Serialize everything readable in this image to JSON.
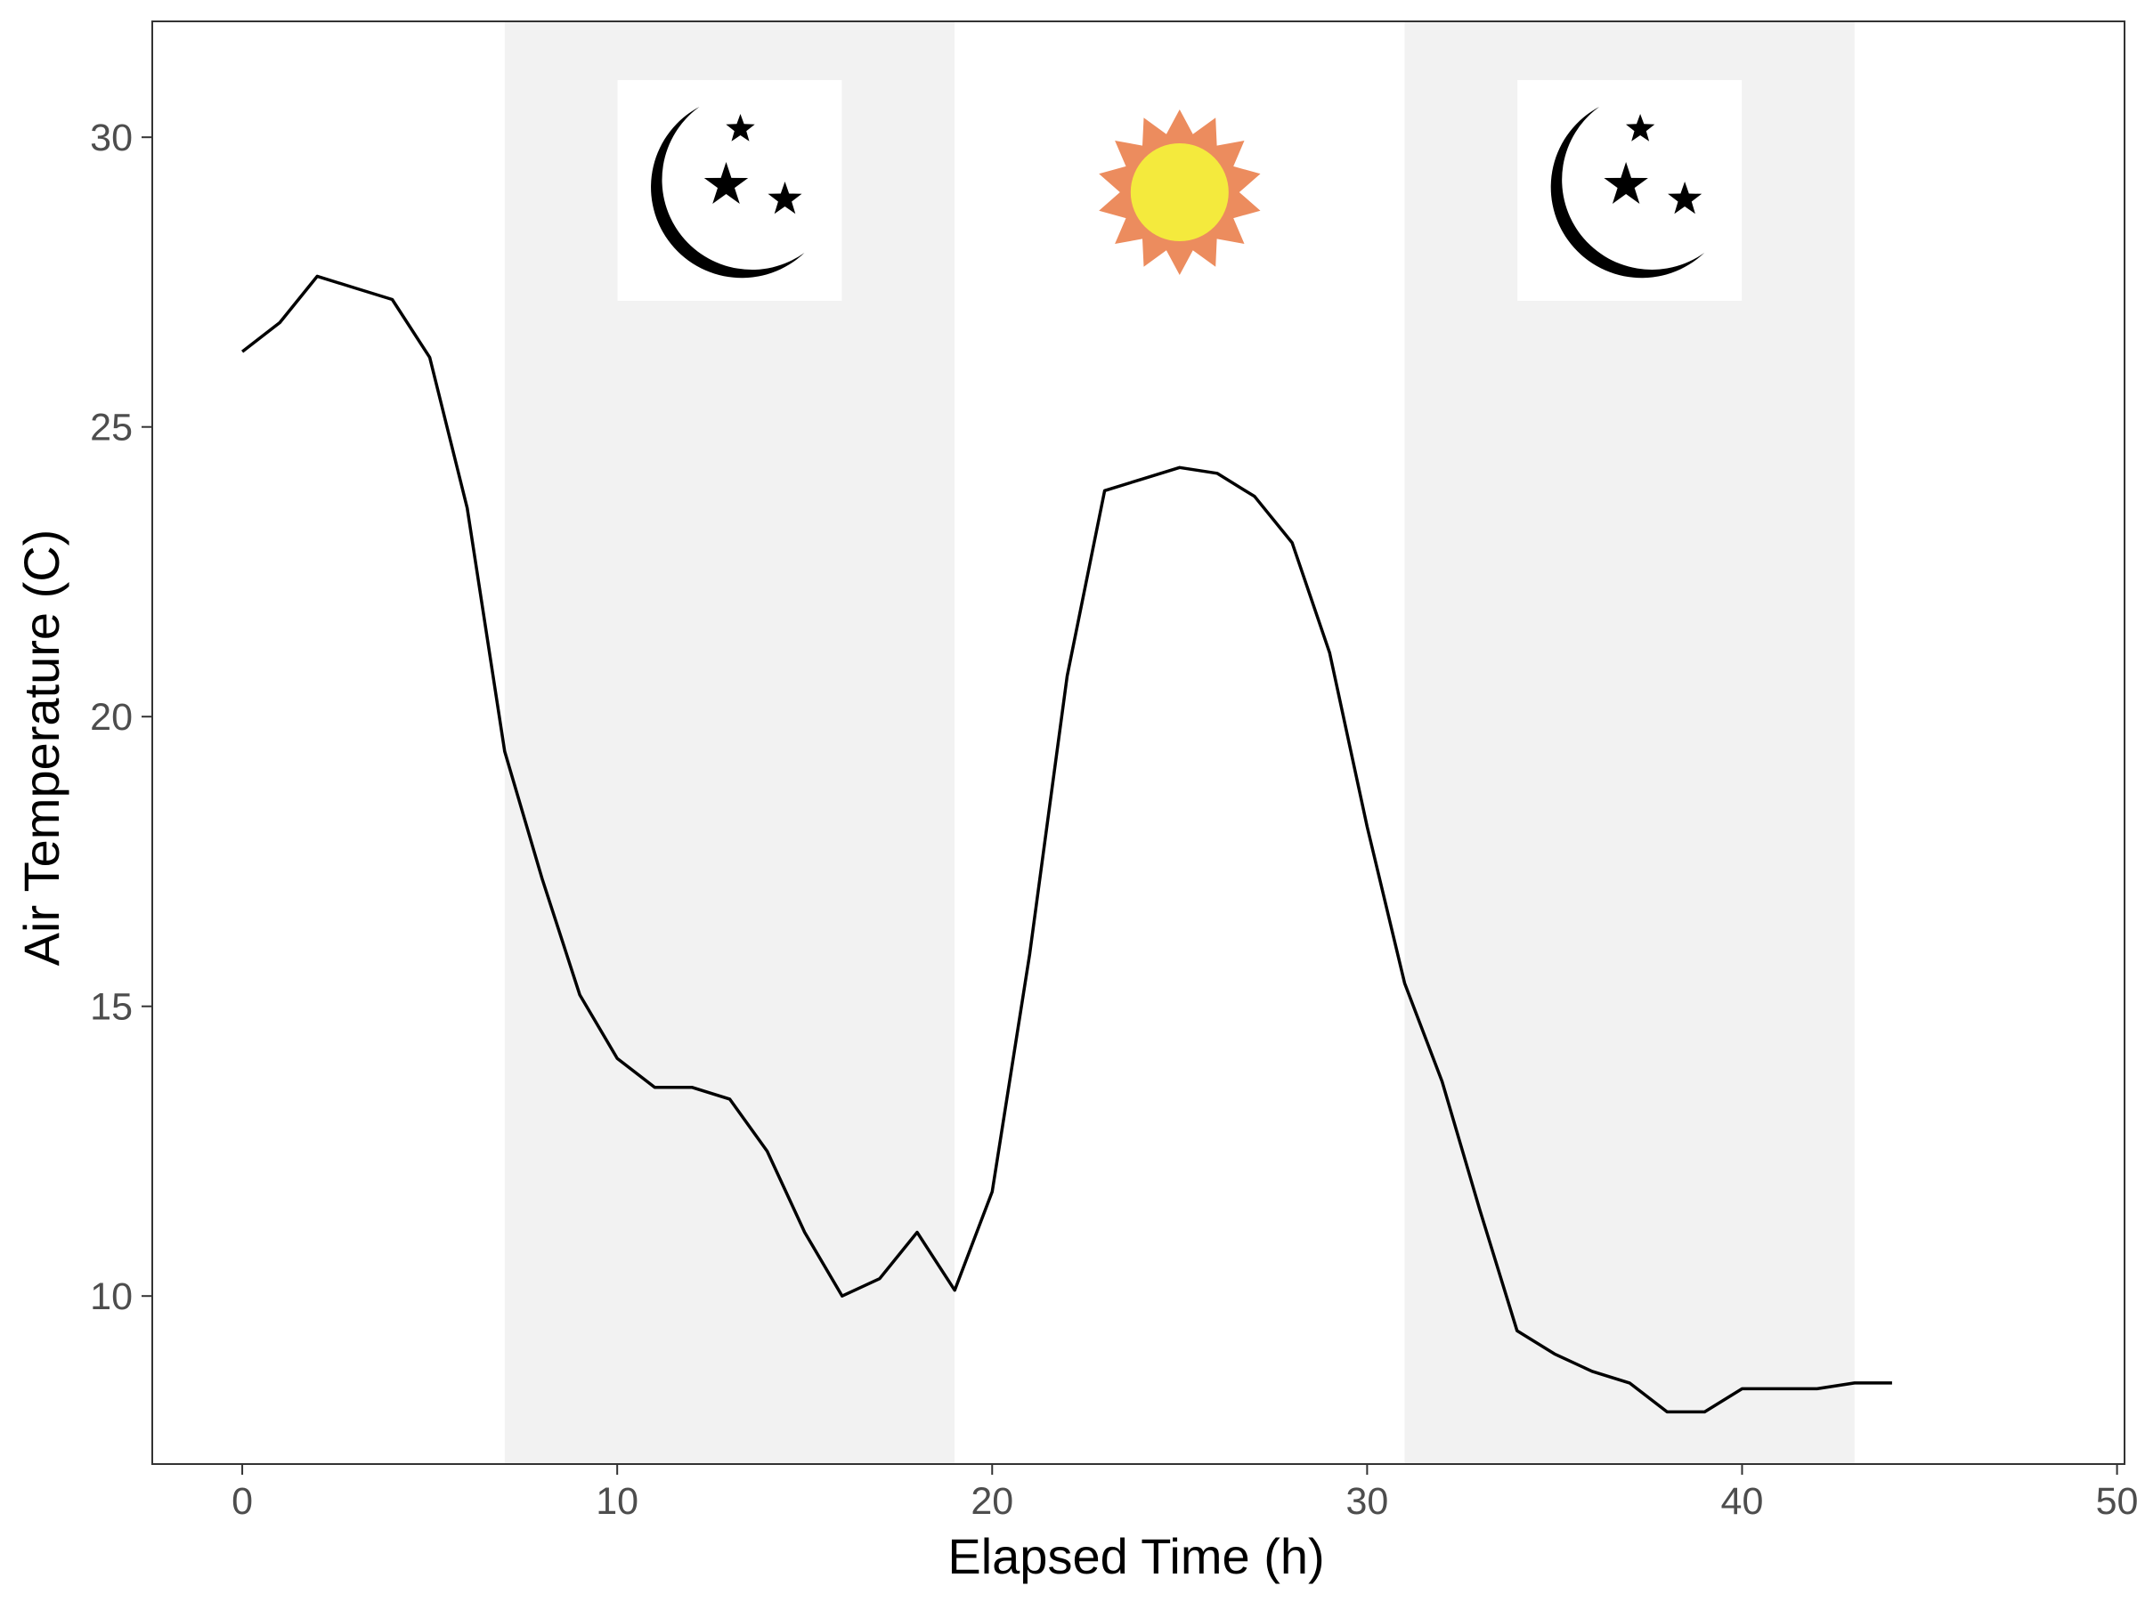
{
  "chart_data": {
    "type": "line",
    "title": "",
    "xlabel": "Elapsed Time (h)",
    "ylabel": "Air Temperature (C)",
    "xlim": [
      -2.4,
      50.2
    ],
    "ylim": [
      7.1,
      32.0
    ],
    "x_ticks": [
      0,
      10,
      20,
      30,
      40,
      50
    ],
    "y_ticks": [
      10,
      15,
      20,
      25,
      30
    ],
    "x_tick_labels": [
      "0",
      "10",
      "20",
      "30",
      "40",
      "50"
    ],
    "y_tick_labels": [
      "10",
      "15",
      "20",
      "25",
      "30"
    ],
    "grid": false,
    "legend": "none",
    "series": [
      {
        "color": "#000000",
        "x": [
          0,
          1,
          2,
          3,
          4,
          5,
          6,
          7,
          8,
          9,
          10,
          11,
          12,
          13,
          14,
          15,
          16,
          17,
          18,
          19,
          20,
          21,
          22,
          23,
          24,
          25,
          26,
          27,
          28,
          29,
          30,
          31,
          32,
          33,
          34,
          35,
          36,
          37,
          38,
          39,
          40,
          41,
          42,
          43,
          44
        ],
        "values": [
          26.3,
          26.8,
          27.6,
          27.4,
          27.2,
          26.2,
          23.6,
          19.4,
          17.2,
          15.2,
          14.1,
          13.6,
          13.6,
          13.4,
          12.5,
          11.1,
          10.0,
          10.3,
          11.1,
          10.1,
          11.8,
          15.9,
          20.7,
          23.9,
          24.1,
          24.3,
          24.2,
          23.8,
          23.0,
          21.1,
          18.1,
          15.4,
          13.7,
          11.5,
          9.4,
          9.0,
          8.7,
          8.5,
          8.0,
          8.0,
          8.4,
          8.4,
          8.4,
          8.5,
          8.5
        ]
      }
    ],
    "shaded_regions": [
      {
        "x_range": [
          7,
          19
        ],
        "color": "#f2f2f2",
        "icon": "moon-stars-icon"
      },
      {
        "x_range": [
          19,
          31
        ],
        "color": "#ffffff",
        "icon": "sun-icon"
      },
      {
        "x_range": [
          31,
          43
        ],
        "color": "#f2f2f2",
        "icon": "moon-stars-icon"
      }
    ],
    "icon_colors": {
      "moon": "#000000",
      "sun_core": "#f4ea3d",
      "sun_rays": "#ec8c5e",
      "icon_box": "#ffffff"
    }
  }
}
